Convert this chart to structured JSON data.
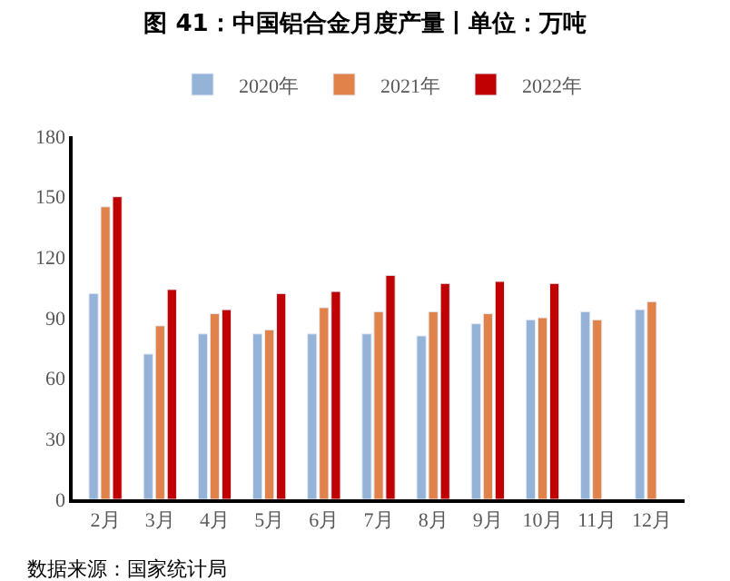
{
  "chart_data": {
    "type": "bar",
    "title": "图 41：中国铝合金月度产量丨单位：万吨",
    "categories": [
      "2月",
      "3月",
      "4月",
      "5月",
      "6月",
      "7月",
      "8月",
      "9月",
      "10月",
      "11月",
      "12月"
    ],
    "series": [
      {
        "name": "2020年",
        "color": "#95b3d7",
        "values": [
          102,
          72,
          82,
          82,
          82,
          82,
          81,
          87,
          89,
          93,
          94
        ]
      },
      {
        "name": "2021年",
        "color": "#e0824a",
        "values": [
          145,
          86,
          92,
          84,
          95,
          93,
          93,
          92,
          90,
          89,
          98
        ]
      },
      {
        "name": "2022年",
        "color": "#c00000",
        "values": [
          150,
          104,
          94,
          102,
          103,
          111,
          107,
          108,
          107,
          null,
          null
        ]
      }
    ],
    "ylim": [
      0,
      180
    ],
    "yticks": [
      0,
      30,
      60,
      90,
      120,
      150,
      180
    ],
    "legend": "top",
    "annotations": [
      "数据来源：国家统计局"
    ]
  }
}
